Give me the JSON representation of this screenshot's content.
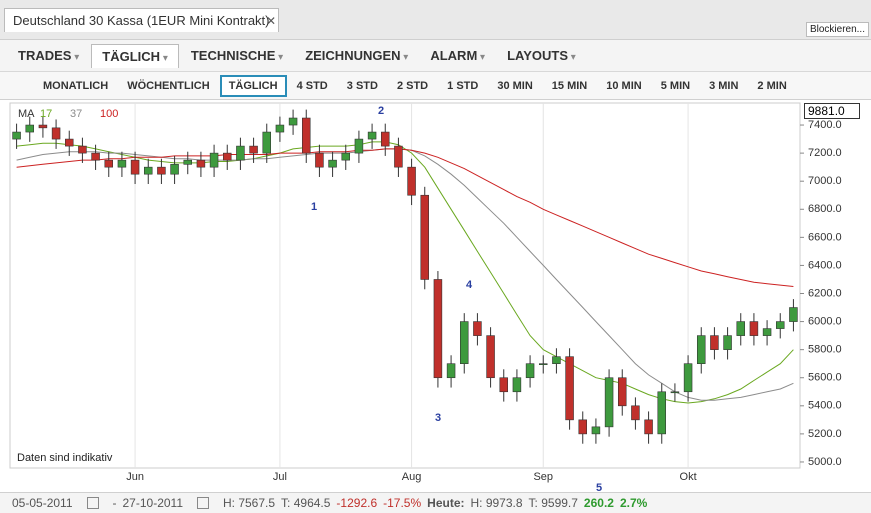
{
  "window": {
    "title": "Deutschland 30 Kassa (1EUR Mini Kontrakt)",
    "button": "Blockieren..."
  },
  "menu": [
    "TRADES",
    "TÄGLICH",
    "TECHNISCHE",
    "ZEICHNUNGEN",
    "ALARM",
    "LAYOUTS"
  ],
  "timeframes": [
    "MONATLICH",
    "WÖCHENTLICH",
    "TÄGLICH",
    "4 STD",
    "3 STD",
    "2 STD",
    "1 STD",
    "30 MIN",
    "15 MIN",
    "10 MIN",
    "5 MIN",
    "3 MIN",
    "2 MIN"
  ],
  "price_box": "9881.0",
  "footer": {
    "from": "05-05-2011",
    "dash": "-",
    "to": "27-10-2011",
    "high": "H: 7567.5",
    "low": "T: 4964.5",
    "change": "-1292.6",
    "change_pct": "-17.5%",
    "today": "Heute:",
    "today_high": "H: 9973.8",
    "today_low": "T: 9599.7",
    "today_change": "260.2",
    "today_pct": "2.7%"
  },
  "chart_data": {
    "type": "candlestick",
    "legend_label": "MA",
    "note": "Daten sind indikativ",
    "annotations": [
      "1",
      "2",
      "3",
      "4",
      "5"
    ],
    "categories": [
      null,
      null,
      null,
      null,
      null,
      null,
      null,
      null,
      null,
      "Jun",
      null,
      null,
      null,
      null,
      null,
      null,
      null,
      null,
      null,
      null,
      "Jul",
      null,
      null,
      null,
      null,
      null,
      null,
      null,
      null,
      null,
      "Aug",
      null,
      null,
      null,
      null,
      null,
      null,
      null,
      null,
      null,
      "Sep",
      null,
      null,
      null,
      null,
      null,
      null,
      null,
      null,
      null,
      null,
      "Okt",
      null,
      null,
      null,
      null,
      null,
      null,
      null,
      null
    ],
    "open": [
      7300,
      7350,
      7400,
      7380,
      7300,
      7250,
      7200,
      7150,
      7100,
      7150,
      7050,
      7100,
      7050,
      7120,
      7150,
      7100,
      7200,
      7150,
      7250,
      7200,
      7350,
      7400,
      7450,
      7200,
      7100,
      7150,
      7200,
      7300,
      7350,
      7250,
      7100,
      6900,
      6300,
      5600,
      5700,
      6000,
      5900,
      5600,
      5500,
      5600,
      5700,
      5700,
      5750,
      5300,
      5200,
      5250,
      5600,
      5400,
      5300,
      5200,
      5500,
      5500,
      5700,
      5900,
      5800,
      5900,
      6000,
      5900,
      5950,
      6000
    ],
    "high": [
      7410,
      7460,
      7460,
      7440,
      7360,
      7310,
      7260,
      7210,
      7210,
      7210,
      7160,
      7160,
      7180,
      7210,
      7210,
      7260,
      7260,
      7310,
      7310,
      7410,
      7460,
      7510,
      7510,
      7260,
      7210,
      7260,
      7360,
      7410,
      7410,
      7310,
      7160,
      6960,
      6360,
      5760,
      6060,
      6060,
      5960,
      5660,
      5660,
      5760,
      5760,
      5810,
      5810,
      5360,
      5310,
      5660,
      5660,
      5460,
      5360,
      5560,
      5560,
      5760,
      5960,
      5960,
      5960,
      6060,
      6060,
      6010,
      6060,
      6160
    ],
    "low": [
      7230,
      7280,
      7310,
      7230,
      7180,
      7130,
      7080,
      7030,
      7030,
      6980,
      6980,
      6980,
      6980,
      7050,
      7030,
      7030,
      7080,
      7080,
      7130,
      7130,
      7280,
      7330,
      7130,
      7030,
      7030,
      7080,
      7130,
      7230,
      7180,
      7030,
      6830,
      6230,
      5530,
      5530,
      5630,
      5830,
      5530,
      5430,
      5430,
      5530,
      5630,
      5630,
      5230,
      5130,
      5130,
      5180,
      5330,
      5230,
      5130,
      5130,
      5430,
      5430,
      5630,
      5730,
      5730,
      5830,
      5830,
      5830,
      5880,
      5930
    ],
    "close": [
      7350,
      7400,
      7380,
      7300,
      7250,
      7200,
      7150,
      7100,
      7150,
      7050,
      7100,
      7050,
      7120,
      7150,
      7100,
      7200,
      7150,
      7250,
      7200,
      7350,
      7400,
      7450,
      7200,
      7100,
      7150,
      7200,
      7300,
      7350,
      7250,
      7100,
      6900,
      6300,
      5600,
      5700,
      6000,
      5900,
      5600,
      5500,
      5600,
      5700,
      5700,
      5750,
      5300,
      5200,
      5250,
      5600,
      5400,
      5300,
      5200,
      5500,
      5500,
      5700,
      5900,
      5800,
      5900,
      6000,
      5900,
      5950,
      6000,
      6100
    ],
    "up_color": "#3e9a3e",
    "down_color": "#c0302b",
    "series": [
      {
        "name": "17",
        "color": "#6aa820",
        "values": [
          7250,
          7260,
          7270,
          7270,
          7260,
          7250,
          7230,
          7210,
          7190,
          7170,
          7150,
          7140,
          7130,
          7130,
          7130,
          7140,
          7140,
          7150,
          7160,
          7180,
          7200,
          7230,
          7240,
          7250,
          7250,
          7250,
          7260,
          7280,
          7280,
          7260,
          7200,
          7100,
          6950,
          6800,
          6650,
          6500,
          6350,
          6200,
          6050,
          5900,
          5800,
          5750,
          5700,
          5650,
          5600,
          5580,
          5560,
          5520,
          5480,
          5450,
          5430,
          5420,
          5430,
          5450,
          5480,
          5520,
          5580,
          5640,
          5700,
          5800
        ]
      },
      {
        "name": "37",
        "color": "#8c8c8c",
        "values": [
          7150,
          7170,
          7190,
          7200,
          7210,
          7210,
          7210,
          7200,
          7200,
          7190,
          7180,
          7170,
          7160,
          7160,
          7150,
          7150,
          7150,
          7150,
          7160,
          7160,
          7170,
          7180,
          7190,
          7200,
          7200,
          7200,
          7210,
          7220,
          7230,
          7230,
          7220,
          7180,
          7120,
          7050,
          6970,
          6880,
          6790,
          6700,
          6600,
          6500,
          6400,
          6300,
          6200,
          6100,
          6000,
          5900,
          5800,
          5700,
          5620,
          5560,
          5500,
          5460,
          5440,
          5440,
          5450,
          5460,
          5480,
          5500,
          5520,
          5560
        ]
      },
      {
        "name": "100",
        "color": "#cc2222",
        "values": [
          7100,
          7110,
          7120,
          7130,
          7140,
          7150,
          7150,
          7160,
          7160,
          7170,
          7170,
          7170,
          7180,
          7180,
          7180,
          7180,
          7190,
          7190,
          7190,
          7190,
          7200,
          7200,
          7200,
          7210,
          7210,
          7210,
          7220,
          7220,
          7230,
          7230,
          7220,
          7200,
          7170,
          7130,
          7090,
          7040,
          6990,
          6940,
          6890,
          6850,
          6800,
          6760,
          6720,
          6680,
          6640,
          6600,
          6560,
          6520,
          6480,
          6450,
          6420,
          6390,
          6360,
          6340,
          6320,
          6300,
          6280,
          6270,
          6260,
          6250
        ]
      }
    ],
    "ylim": [
      4957,
      7557
    ],
    "yticks": [
      {
        "value": 5000,
        "label": "5000.0"
      },
      {
        "value": 5200,
        "label": "5200.0"
      },
      {
        "value": 5400,
        "label": "5400.0"
      },
      {
        "value": 5600,
        "label": "5600.0"
      },
      {
        "value": 5800,
        "label": "5800.0"
      },
      {
        "value": 6000,
        "label": "6000.0"
      },
      {
        "value": 6200,
        "label": "6200.0"
      },
      {
        "value": 6400,
        "label": "6400.0"
      },
      {
        "value": 6600,
        "label": "6600.0"
      },
      {
        "value": 6800,
        "label": "6800.0"
      },
      {
        "value": 7000,
        "label": "7000.0"
      },
      {
        "value": 7200,
        "label": "7200.0"
      },
      {
        "value": 7400,
        "label": "7400.0"
      }
    ],
    "grid": "x"
  }
}
